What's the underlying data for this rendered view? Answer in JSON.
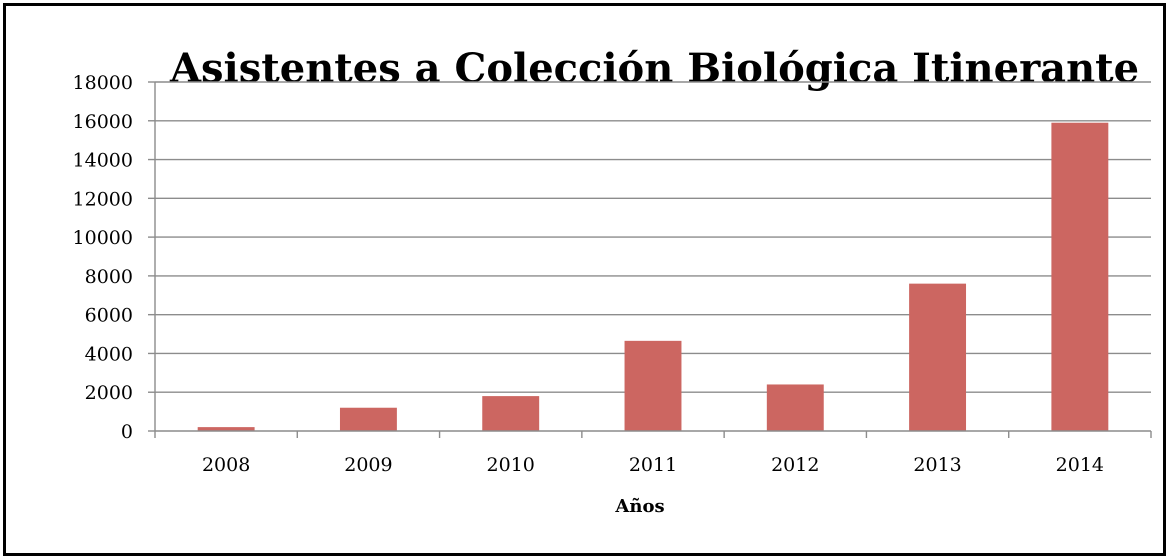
{
  "chart_data": {
    "type": "bar",
    "title": "Asistentes a Colección Biológica Itinerante",
    "xlabel": "Años",
    "ylabel": "",
    "categories": [
      "2008",
      "2009",
      "2010",
      "2011",
      "2012",
      "2013",
      "2014"
    ],
    "values": [
      200,
      1200,
      1800,
      4650,
      2400,
      7600,
      15900
    ],
    "ylim": [
      0,
      18000
    ],
    "yticks": [
      0,
      2000,
      4000,
      6000,
      8000,
      10000,
      12000,
      14000,
      16000,
      18000
    ],
    "grid": true,
    "legend": "none",
    "colors": {
      "bar": "#cc6661",
      "grid": "#8c8c8c",
      "frame": "#000000"
    }
  }
}
